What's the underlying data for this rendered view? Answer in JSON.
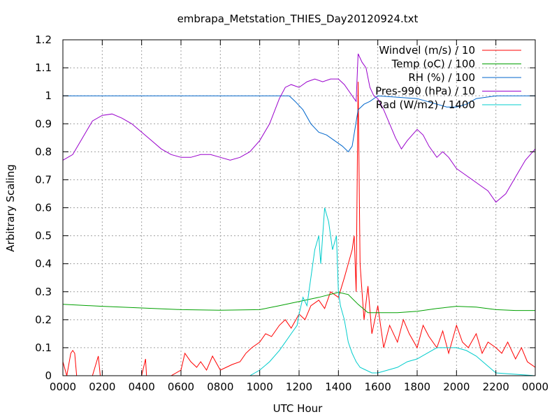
{
  "chart_data": {
    "type": "line",
    "title": "embrapa_Metstation_THIES_Day20120924.txt",
    "xlabel": "UTC Hour",
    "ylabel": "Arbitrary Scaling",
    "xlim": [
      0,
      24
    ],
    "ylim": [
      0,
      1.2
    ],
    "grid": true,
    "legend_position": "top-right",
    "x_ticks": [
      {
        "value": 0,
        "label": "0000"
      },
      {
        "value": 2,
        "label": "0200"
      },
      {
        "value": 4,
        "label": "0400"
      },
      {
        "value": 6,
        "label": "0600"
      },
      {
        "value": 8,
        "label": "0800"
      },
      {
        "value": 10,
        "label": "1000"
      },
      {
        "value": 12,
        "label": "1200"
      },
      {
        "value": 14,
        "label": "1400"
      },
      {
        "value": 16,
        "label": "1600"
      },
      {
        "value": 18,
        "label": "1800"
      },
      {
        "value": 20,
        "label": "2000"
      },
      {
        "value": 22,
        "label": "2200"
      },
      {
        "value": 24,
        "label": "0000"
      }
    ],
    "y_ticks": [
      {
        "value": 0,
        "label": "0"
      },
      {
        "value": 0.1,
        "label": "0.1"
      },
      {
        "value": 0.2,
        "label": "0.2"
      },
      {
        "value": 0.3,
        "label": "0.3"
      },
      {
        "value": 0.4,
        "label": "0.4"
      },
      {
        "value": 0.5,
        "label": "0.5"
      },
      {
        "value": 0.6,
        "label": "0.6"
      },
      {
        "value": 0.7,
        "label": "0.7"
      },
      {
        "value": 0.8,
        "label": "0.8"
      },
      {
        "value": 0.9,
        "label": "0.9"
      },
      {
        "value": 1.0,
        "label": "1"
      },
      {
        "value": 1.1,
        "label": "1.1"
      },
      {
        "value": 1.2,
        "label": "1.2"
      }
    ],
    "series": [
      {
        "name": "Windvel (m/s) / 10",
        "color": "#ff0000",
        "x": [
          0,
          0.2,
          0.4,
          0.5,
          0.6,
          0.7,
          0.8,
          1.0,
          1.5,
          1.8,
          1.9,
          2.0,
          2.5,
          3.0,
          3.5,
          4.0,
          4.2,
          4.25,
          4.3,
          5.0,
          5.5,
          6.0,
          6.2,
          6.5,
          6.8,
          7.0,
          7.3,
          7.6,
          8.0,
          8.3,
          8.6,
          9.0,
          9.3,
          9.6,
          10.0,
          10.3,
          10.6,
          11.0,
          11.3,
          11.6,
          12.0,
          12.3,
          12.6,
          13.0,
          13.3,
          13.6,
          14.0,
          14.3,
          14.5,
          14.7,
          14.8,
          14.9,
          15.0,
          15.1,
          15.2,
          15.3,
          15.5,
          15.7,
          16.0,
          16.3,
          16.6,
          17.0,
          17.3,
          17.6,
          18.0,
          18.3,
          18.6,
          19.0,
          19.3,
          19.6,
          20.0,
          20.3,
          20.6,
          21.0,
          21.3,
          21.6,
          22.0,
          22.3,
          22.6,
          23.0,
          23.3,
          23.6,
          24.0
        ],
        "y": [
          0.05,
          0.0,
          0.08,
          0.09,
          0.08,
          0.0,
          0.0,
          0.0,
          0.0,
          0.07,
          0.0,
          0.0,
          0.0,
          0.0,
          0.0,
          0.0,
          0.06,
          0.0,
          0.0,
          0.0,
          0.0,
          0.02,
          0.08,
          0.05,
          0.03,
          0.05,
          0.02,
          0.07,
          0.02,
          0.03,
          0.04,
          0.05,
          0.08,
          0.1,
          0.12,
          0.15,
          0.14,
          0.18,
          0.2,
          0.17,
          0.22,
          0.2,
          0.25,
          0.27,
          0.24,
          0.3,
          0.28,
          0.35,
          0.4,
          0.45,
          0.5,
          0.3,
          1.05,
          0.4,
          0.3,
          0.2,
          0.32,
          0.15,
          0.25,
          0.1,
          0.18,
          0.12,
          0.2,
          0.15,
          0.1,
          0.18,
          0.14,
          0.1,
          0.16,
          0.08,
          0.18,
          0.12,
          0.1,
          0.15,
          0.08,
          0.12,
          0.1,
          0.08,
          0.12,
          0.06,
          0.1,
          0.05,
          0.03
        ]
      },
      {
        "name": "Temp (oC) / 100",
        "color": "#00a000",
        "x": [
          0,
          2,
          4,
          6,
          8,
          10,
          11,
          12,
          13,
          14,
          14.5,
          15,
          15.5,
          16,
          17,
          18,
          19,
          20,
          21,
          22,
          23,
          24
        ],
        "y": [
          0.255,
          0.248,
          0.242,
          0.236,
          0.234,
          0.236,
          0.25,
          0.265,
          0.28,
          0.298,
          0.29,
          0.255,
          0.225,
          0.225,
          0.225,
          0.23,
          0.24,
          0.248,
          0.245,
          0.236,
          0.233,
          0.233
        ]
      },
      {
        "name": "RH (%) / 100",
        "color": "#0066cc",
        "x": [
          0,
          10,
          11.5,
          11.8,
          12.2,
          12.6,
          13,
          13.4,
          13.8,
          14.2,
          14.5,
          14.7,
          15.0,
          15.3,
          15.6,
          16,
          17,
          18,
          19,
          19.5,
          20,
          20.5,
          21,
          22,
          24
        ],
        "y": [
          1.0,
          1.0,
          1.0,
          0.98,
          0.95,
          0.9,
          0.87,
          0.86,
          0.84,
          0.82,
          0.8,
          0.82,
          0.95,
          0.97,
          0.98,
          1.0,
          0.995,
          0.99,
          0.97,
          0.96,
          0.96,
          0.97,
          0.99,
          1.0,
          1.0
        ]
      },
      {
        "name": "Pres-990 (hPa) / 10",
        "color": "#9900cc",
        "x": [
          0,
          0.5,
          1.0,
          1.5,
          2.0,
          2.5,
          3.0,
          3.5,
          4.0,
          4.5,
          5.0,
          5.5,
          6.0,
          6.5,
          7.0,
          7.5,
          8.0,
          8.5,
          9.0,
          9.5,
          10.0,
          10.5,
          11.0,
          11.3,
          11.6,
          12.0,
          12.4,
          12.8,
          13.2,
          13.6,
          14.0,
          14.3,
          14.5,
          14.7,
          14.9,
          15.0,
          15.2,
          15.4,
          15.6,
          15.8,
          16.0,
          16.3,
          16.6,
          16.9,
          17.2,
          17.5,
          18.0,
          18.3,
          18.6,
          19.0,
          19.3,
          19.6,
          20.0,
          20.4,
          20.8,
          21.2,
          21.6,
          22.0,
          22.5,
          23.0,
          23.5,
          24.0
        ],
        "y": [
          0.77,
          0.79,
          0.85,
          0.91,
          0.93,
          0.935,
          0.92,
          0.9,
          0.87,
          0.84,
          0.81,
          0.79,
          0.78,
          0.78,
          0.79,
          0.79,
          0.78,
          0.77,
          0.78,
          0.8,
          0.84,
          0.9,
          0.99,
          1.03,
          1.04,
          1.03,
          1.05,
          1.06,
          1.05,
          1.06,
          1.06,
          1.04,
          1.02,
          1.0,
          0.98,
          1.15,
          1.12,
          1.1,
          1.03,
          1.0,
          0.99,
          0.95,
          0.9,
          0.85,
          0.81,
          0.84,
          0.88,
          0.86,
          0.82,
          0.78,
          0.8,
          0.78,
          0.74,
          0.72,
          0.7,
          0.68,
          0.66,
          0.62,
          0.65,
          0.71,
          0.77,
          0.81
        ]
      },
      {
        "name": "Rad (W/m2) / 1400",
        "color": "#00cccc",
        "x": [
          0,
          9.5,
          10,
          10.5,
          11,
          11.3,
          11.6,
          11.9,
          12.0,
          12.2,
          12.4,
          12.6,
          12.8,
          13.0,
          13.1,
          13.3,
          13.5,
          13.7,
          13.9,
          14.0,
          14.1,
          14.3,
          14.5,
          14.7,
          14.9,
          15.1,
          15.4,
          15.7,
          16.0,
          16.5,
          17.0,
          17.5,
          18.0,
          18.5,
          19.0,
          19.5,
          20.0,
          20.5,
          21.0,
          21.5,
          22.0,
          24.0
        ],
        "y": [
          0,
          0,
          0.02,
          0.05,
          0.09,
          0.12,
          0.15,
          0.18,
          0.22,
          0.28,
          0.25,
          0.35,
          0.45,
          0.5,
          0.4,
          0.6,
          0.55,
          0.45,
          0.5,
          0.3,
          0.25,
          0.2,
          0.12,
          0.08,
          0.05,
          0.03,
          0.02,
          0.01,
          0.01,
          0.02,
          0.03,
          0.05,
          0.06,
          0.08,
          0.1,
          0.1,
          0.1,
          0.09,
          0.07,
          0.04,
          0.01,
          0
        ]
      }
    ]
  }
}
